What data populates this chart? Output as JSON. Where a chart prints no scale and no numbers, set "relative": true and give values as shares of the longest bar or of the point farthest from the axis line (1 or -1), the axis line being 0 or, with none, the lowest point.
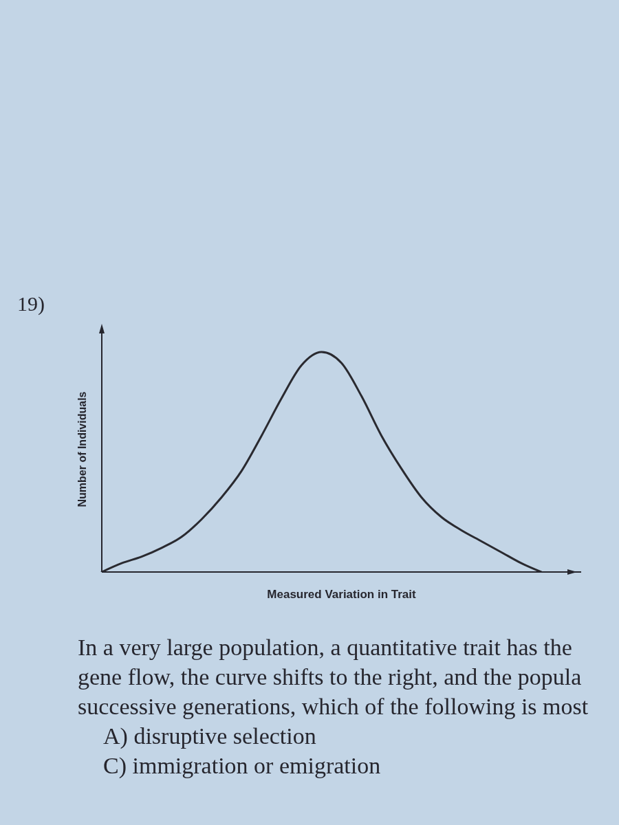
{
  "chart_data": {
    "type": "line",
    "title": "19)",
    "xlabel": "Measured Variation in Trait",
    "ylabel": "Number of Individuals",
    "categories": [
      null,
      null,
      null,
      null,
      null,
      null,
      null,
      null,
      null,
      null,
      null,
      null,
      null,
      null,
      null,
      null,
      null,
      null,
      null,
      null,
      null,
      null,
      null,
      null,
      null
    ],
    "series": [
      {
        "color": "#2a2a30",
        "values": [
          0,
          0.04,
          0.07,
          0.11,
          0.16,
          0.24,
          0.34,
          0.46,
          0.62,
          0.79,
          0.94,
          1,
          0.95,
          0.8,
          0.62,
          0.47,
          0.34,
          0.25,
          0.19,
          0.14,
          0.09,
          0.04,
          0,
          null,
          null
        ]
      }
    ],
    "relative": true,
    "marker": "none",
    "annotations": [
      "In a very large population, a quantitative trait has the",
      "gene flow, the curve shifts to the right, and the popula",
      "successive generations, which of the following is most",
      "A) disruptive selection",
      "C) immigration or emigration"
    ]
  }
}
